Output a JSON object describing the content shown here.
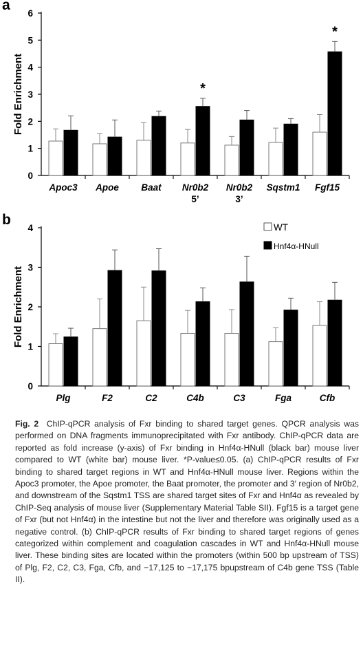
{
  "chart_data": [
    {
      "panel_label": "a",
      "type": "bar",
      "ylabel": "Fold Enrichment",
      "ylim": [
        0,
        6
      ],
      "yticks": [
        0,
        1,
        2,
        3,
        4,
        5,
        6
      ],
      "categories": [
        [
          "Apoc3"
        ],
        [
          "Apoe"
        ],
        [
          "Baat"
        ],
        [
          "Nr0b2",
          "5’"
        ],
        [
          "Nr0b2",
          "3’"
        ],
        [
          "Sqstm1"
        ],
        [
          "Fgf15"
        ]
      ],
      "series": [
        {
          "name": "WT",
          "color": "#ffffff",
          "values": [
            1.27,
            1.17,
            1.3,
            1.2,
            1.12,
            1.22,
            1.6
          ],
          "errors": [
            0.45,
            0.37,
            0.65,
            0.5,
            0.32,
            0.53,
            0.65
          ]
        },
        {
          "name": "Hnf4α-HNull",
          "color": "#000000",
          "values": [
            1.67,
            1.42,
            2.18,
            2.55,
            2.05,
            1.9,
            4.57
          ],
          "errors": [
            0.53,
            0.63,
            0.2,
            0.3,
            0.35,
            0.2,
            0.38
          ]
        }
      ],
      "significance": [
        {
          "category_index": 3,
          "label": "*"
        },
        {
          "category_index": 6,
          "label": "*"
        }
      ],
      "legend": false
    },
    {
      "panel_label": "b",
      "type": "bar",
      "ylabel": "Fold Enrichment",
      "ylim": [
        0,
        4
      ],
      "yticks": [
        0,
        1,
        2,
        3,
        4
      ],
      "categories": [
        [
          "Plg"
        ],
        [
          "F2"
        ],
        [
          "C2"
        ],
        [
          "C4b"
        ],
        [
          "C3"
        ],
        [
          "Fga"
        ],
        [
          "Cfb"
        ]
      ],
      "series": [
        {
          "name": "WT",
          "color": "#ffffff",
          "values": [
            1.07,
            1.45,
            1.65,
            1.33,
            1.33,
            1.12,
            1.53
          ],
          "errors": [
            0.25,
            0.75,
            0.85,
            0.58,
            0.6,
            0.35,
            0.6
          ]
        },
        {
          "name": "Hnf4α-HNull",
          "color": "#000000",
          "values": [
            1.24,
            2.92,
            2.91,
            2.13,
            2.63,
            1.92,
            2.17
          ],
          "errors": [
            0.22,
            0.52,
            0.56,
            0.35,
            0.65,
            0.3,
            0.45
          ]
        }
      ],
      "legend": true,
      "legend_position": "top-right"
    }
  ],
  "caption": {
    "fig_label": "Fig. 2",
    "title": "ChIP-qPCR analysis of Fxr binding to shared target genes.",
    "text": "QPCR analysis was performed on DNA fragments immunoprecipitated with Fxr antibody. ChIP-qPCR data are reported as fold increase (y-axis) of Fxr binding in Hnf4α-HNull (black bar) mouse liver compared to WT (white bar) mouse liver. *P-value≤0.05. (a) ChIP-qPCR results of Fxr binding to shared target regions in WT and Hnf4α-HNull mouse liver. Regions within the Apoc3 promoter, the Apoe promoter, the Baat promoter, the promoter and 3′ region of Nr0b2, and downstream of the Sqstm1 TSS are shared target sites of Fxr and Hnf4α as revealed by ChIP-Seq analysis of mouse liver (Supplementary Material Table SII). Fgf15 is a target gene of Fxr (but not Hnf4α) in the intestine but not the liver and therefore was originally used as a negative control. (b) ChIP-qPCR results of Fxr binding to shared target regions of genes categorized within complement and coagulation cascades in WT and Hnf4α-HNull mouse liver. These binding sites are located within the promoters (within 500 bp upstream of TSS) of Plg, F2, C2, C3, Fga, Cfb, and −17,125 to −17,175 bpupstream of C4b gene TSS (Table II)."
  }
}
